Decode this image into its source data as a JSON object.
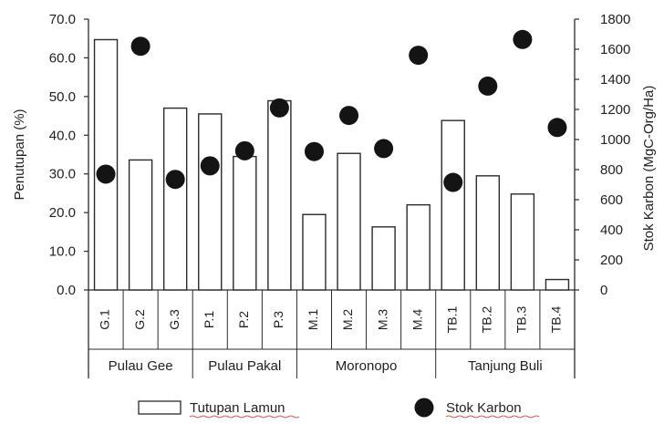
{
  "chart_data": {
    "type": "bar",
    "title": "",
    "categories": [
      "G.1",
      "G.2",
      "G.3",
      "P.1",
      "P.2",
      "P.3",
      "M.1",
      "M.2",
      "M.3",
      "M.4",
      "TB.1",
      "TB.2",
      "TB.3",
      "TB.4"
    ],
    "groups": [
      {
        "label": "Pulau Gee",
        "categories": [
          "G.1",
          "G.2",
          "G.3"
        ]
      },
      {
        "label": "Pulau Pakal",
        "categories": [
          "P.1",
          "P.2",
          "P.3"
        ]
      },
      {
        "label": "Moronopo",
        "categories": [
          "M.1",
          "M.2",
          "M.3",
          "M.4"
        ]
      },
      {
        "label": "Tanjung Buli",
        "categories": [
          "TB.1",
          "TB.2",
          "TB.3",
          "TB.4"
        ]
      }
    ],
    "series": [
      {
        "name": "Tutupan Lamun",
        "type": "bar",
        "axis": "left",
        "values": [
          64.7,
          33.6,
          47.0,
          45.5,
          34.5,
          48.9,
          19.5,
          35.3,
          16.3,
          22.0,
          43.8,
          29.5,
          24.8,
          2.7
        ]
      },
      {
        "name": "Stok Karbon",
        "type": "scatter",
        "axis": "right",
        "values": [
          770,
          1620,
          735,
          825,
          925,
          1210,
          920,
          1160,
          940,
          1560,
          715,
          1355,
          1665,
          1080
        ]
      }
    ],
    "ylabel": "Penutupan (%)",
    "y2label": "Stok Karbon (MgC-Org/Ha)",
    "ylim": [
      0,
      70
    ],
    "y2lim": [
      0,
      1800
    ],
    "yticks": [
      "70.0",
      "60.0",
      "50.0",
      "40.0",
      "30.0",
      "20.0",
      "10.0",
      "0.0"
    ],
    "y2ticks": [
      "1800",
      "1600",
      "1400",
      "1200",
      "1000",
      "800",
      "600",
      "400",
      "200",
      "0"
    ],
    "legend": {
      "position": "bottom",
      "items": [
        "Tutupan Lamun",
        "Stok Karbon"
      ]
    },
    "grid": false,
    "colors": {
      "bar_fill": "#ffffff",
      "bar_stroke": "#2a2a2a",
      "marker": "#141414",
      "axis": "#2a2a2a",
      "text": "#1f1f1f",
      "legend_underline": "#d22"
    }
  }
}
